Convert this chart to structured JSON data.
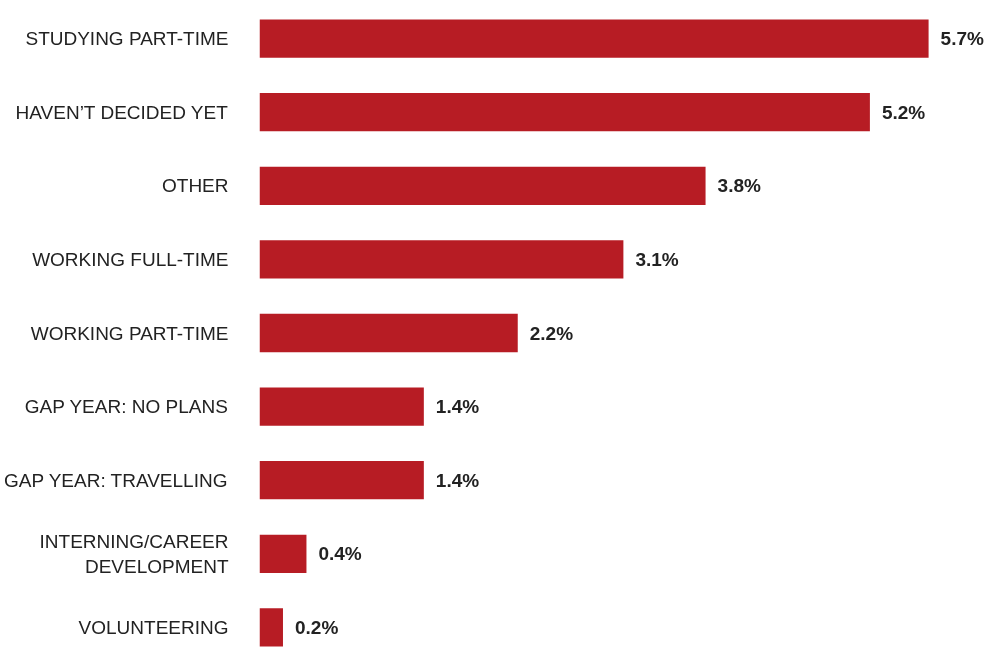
{
  "chart_data": {
    "type": "bar",
    "orientation": "horizontal",
    "categories": [
      "STUDYING PART-TIME",
      "HAVEN’T DECIDED YET",
      "OTHER",
      "WORKING FULL-TIME",
      "WORKING PART-TIME",
      "GAP YEAR: NO PLANS",
      "GAP YEAR: TRAVELLING",
      "INTERNING/CAREER\nDEVELOPMENT",
      "VOLUNTEERING"
    ],
    "values": [
      5.7,
      5.2,
      3.8,
      3.1,
      2.2,
      1.4,
      1.4,
      0.4,
      0.2
    ],
    "value_labels": [
      "5.7%",
      "5.2%",
      "3.8%",
      "3.1%",
      "2.2%",
      "1.4%",
      "1.4%",
      "0.4%",
      "0.2%"
    ],
    "color": "#b71c24"
  }
}
